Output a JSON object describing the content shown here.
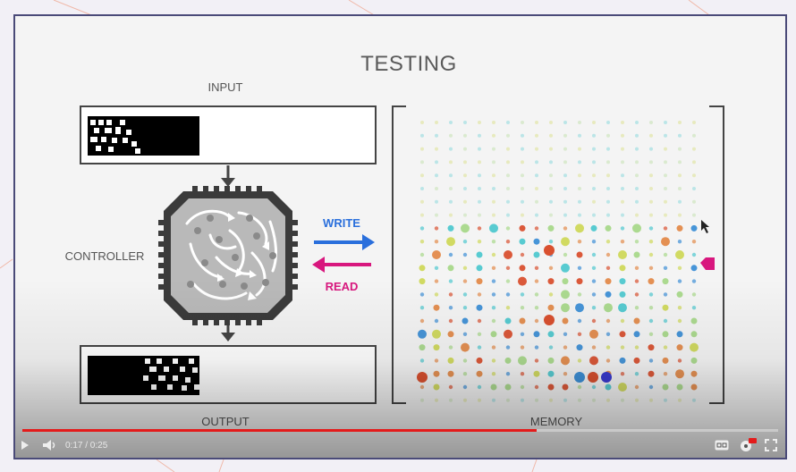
{
  "slide": {
    "title": "TESTING",
    "input_label": "INPUT",
    "controller_label": "CONTROLLER",
    "output_label": "OUTPUT",
    "memory_label": "MEMORY",
    "write_label": "WRITE",
    "read_label": "READ"
  },
  "player": {
    "time_display": "0:17 / 0:25",
    "progress_fraction": 0.68,
    "buttons": {
      "play": "play-icon",
      "volume": "volume-icon",
      "captions": "captions-icon",
      "settings": "settings-icon",
      "fullscreen": "fullscreen-icon"
    }
  },
  "colors": {
    "write_arrow": "#2a6fdc",
    "read_arrow": "#d8177e",
    "progress": "#e41b1b",
    "memory_orange": "#e38a4a",
    "memory_red": "#d9502f",
    "memory_blue": "#3d8fd6",
    "memory_cyan": "#4fc8cf",
    "memory_yellow": "#cfd85a",
    "memory_green": "#a8d88a"
  }
}
